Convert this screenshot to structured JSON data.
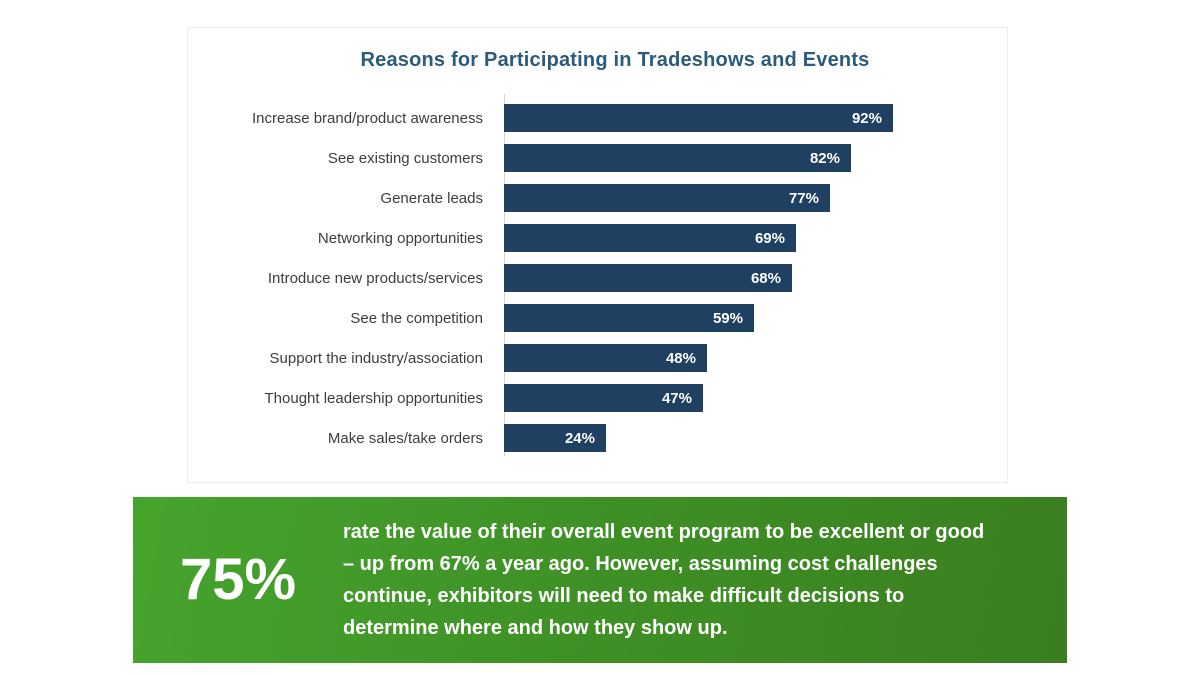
{
  "chart_data": {
    "type": "bar",
    "orientation": "horizontal",
    "title": "Reasons for Participating in Tradeshows and Events",
    "categories": [
      "Increase brand/product awareness",
      "See existing customers",
      "Generate leads",
      "Networking opportunities",
      "Introduce new products/services",
      "See the competition",
      "Support the industry/association",
      "Thought leadership opportunities",
      "Make sales/take orders"
    ],
    "values": [
      92,
      82,
      77,
      69,
      68,
      59,
      48,
      47,
      24
    ],
    "value_labels": [
      "92%",
      "82%",
      "77%",
      "69%",
      "68%",
      "59%",
      "48%",
      "47%",
      "24%"
    ],
    "xlabel": "",
    "ylabel": "",
    "xlim": [
      0,
      100
    ],
    "grid": false,
    "legend": false,
    "bar_color": "#1f4061",
    "value_label_color": "#ffffff",
    "title_color": "#2a5a7c",
    "category_label_color": "#3d3d3d"
  },
  "callout": {
    "stat": "75%",
    "text": "rate the value of their overall event program to be excellent or good\n– up from 67% a year ago. However, assuming cost challenges\ncontinue, exhibitors will need to make difficult decisions to\ndetermine where and how they show up.",
    "background_start": "#46a42d",
    "background_end": "#3a7e1f",
    "text_color": "#ffffff"
  }
}
